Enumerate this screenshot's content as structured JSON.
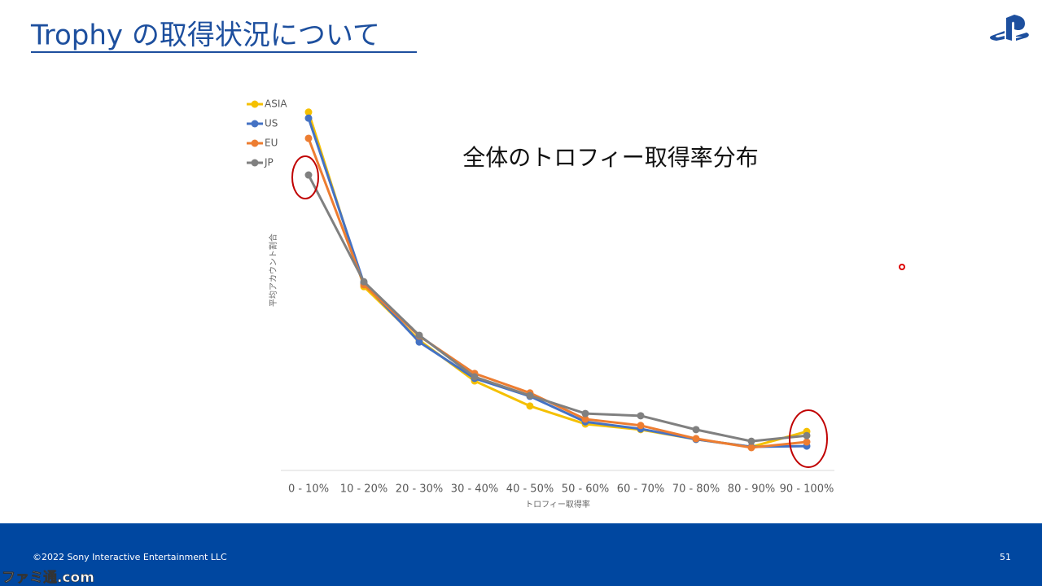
{
  "header": {
    "title": "Trophy の取得状況について"
  },
  "chart_data": {
    "type": "line",
    "title": "全体のトロフィー取得率分布",
    "x_label": "トロフィー取得率",
    "y_label": "平均アカウント割合",
    "categories": [
      "0 - 10%",
      "10 - 20%",
      "20 - 30%",
      "30 - 40%",
      "40 - 50%",
      "50 - 60%",
      "60 - 70%",
      "70 - 80%",
      "80 - 90%",
      "90 - 100%"
    ],
    "ylim": [
      0,
      100
    ],
    "legend": "top-left",
    "series": [
      {
        "name": "ASIA",
        "color": "#f5c000",
        "values": [
          95.7,
          49.1,
          34.8,
          23.9,
          17.2,
          12.4,
          10.9,
          8.3,
          6.3,
          10.4
        ]
      },
      {
        "name": "US",
        "color": "#4472c4",
        "values": [
          94.1,
          50.0,
          34.3,
          24.6,
          19.8,
          13.0,
          11.1,
          8.3,
          6.3,
          6.5
        ]
      },
      {
        "name": "EU",
        "color": "#ed7d31",
        "values": [
          88.7,
          49.6,
          35.9,
          25.9,
          20.7,
          13.7,
          12.0,
          8.5,
          6.1,
          7.6
        ]
      },
      {
        "name": "JP",
        "color": "#808080",
        "values": [
          78.9,
          50.4,
          36.1,
          25.0,
          20.0,
          15.2,
          14.6,
          10.9,
          7.8,
          9.3
        ]
      }
    ]
  },
  "footer": {
    "copyright": "©2022 Sony Interactive Entertainment LLC",
    "page_number": "51"
  },
  "watermark": "ファミ通.com"
}
